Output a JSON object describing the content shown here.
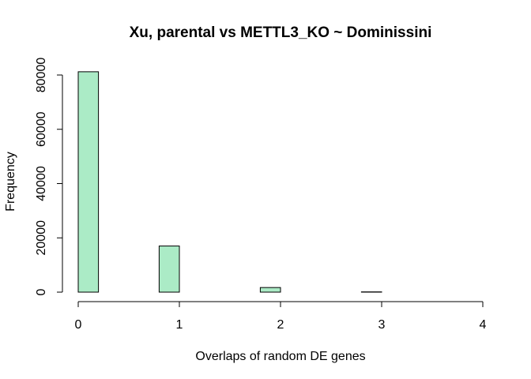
{
  "chart_data": {
    "type": "bar",
    "title": "Xu, parental vs METTL3_KO ~ Dominissini",
    "xlabel": "Overlaps of random DE genes",
    "ylabel": "Frequency",
    "bin_edges": [
      0,
      0.2,
      0.4,
      0.6,
      0.8,
      1.0,
      1.2,
      1.4,
      1.6,
      1.8,
      2.0,
      2.2,
      2.4,
      2.6,
      2.8,
      3.0,
      3.2,
      3.4,
      3.6,
      3.8,
      4.0
    ],
    "values": [
      81200,
      0,
      0,
      0,
      17000,
      0,
      0,
      0,
      0,
      1700,
      0,
      0,
      0,
      0,
      100,
      0,
      0,
      0,
      0,
      0
    ],
    "xlim": [
      0,
      4
    ],
    "ylim": [
      0,
      80000
    ],
    "xticks": [
      "0",
      "1",
      "2",
      "3",
      "4"
    ],
    "yticks": [
      "0",
      "20000",
      "40000",
      "60000",
      "80000"
    ],
    "bar_color": "#abebc6",
    "grid": false
  }
}
